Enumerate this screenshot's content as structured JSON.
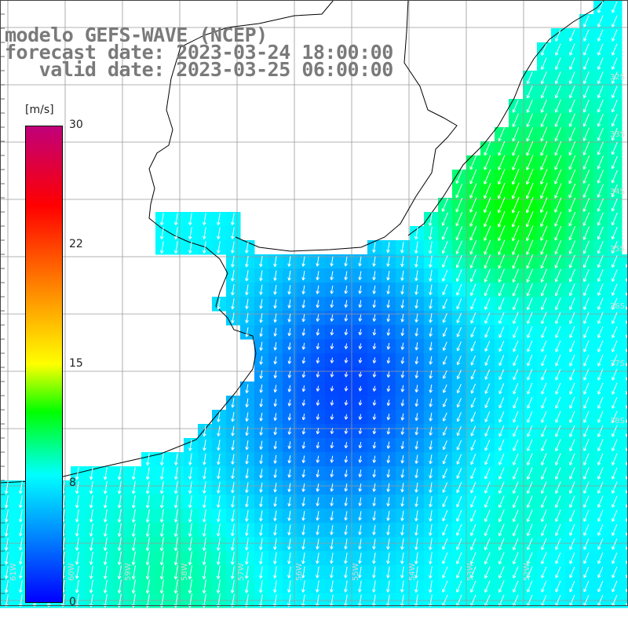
{
  "title": {
    "line1": "modelo GEFS-WAVE (NCEP)",
    "line2": "forecast date: 2023-03-24 18:00:00",
    "line3": "   valid date: 2023-03-25 06:00:00"
  },
  "colorbar": {
    "unit": "[m/s]",
    "ticks": [
      "30",
      "22",
      "15",
      "8",
      "0"
    ],
    "min": 0,
    "max": 30,
    "stops": [
      {
        "value": 0,
        "color": "#0000ff"
      },
      {
        "value": 4,
        "color": "#0080ff"
      },
      {
        "value": 8,
        "color": "#00ffff"
      },
      {
        "value": 12,
        "color": "#00ff00"
      },
      {
        "value": 15,
        "color": "#ffff00"
      },
      {
        "value": 20,
        "color": "#ff8000"
      },
      {
        "value": 25,
        "color": "#ff0000"
      },
      {
        "value": 30,
        "color": "#c0007a"
      }
    ]
  },
  "lat_labels": [
    "32S",
    "33S",
    "34S",
    "35S",
    "36S",
    "37S",
    "38S"
  ],
  "lon_labels": [
    "61W",
    "60W",
    "59W",
    "58W",
    "57W",
    "56W",
    "55W",
    "54W",
    "53W",
    "52W"
  ],
  "colors": {
    "land": "#ffffff",
    "grid": "#9a9a9a",
    "coast": "#000000",
    "arrow": "#ffffff"
  }
}
